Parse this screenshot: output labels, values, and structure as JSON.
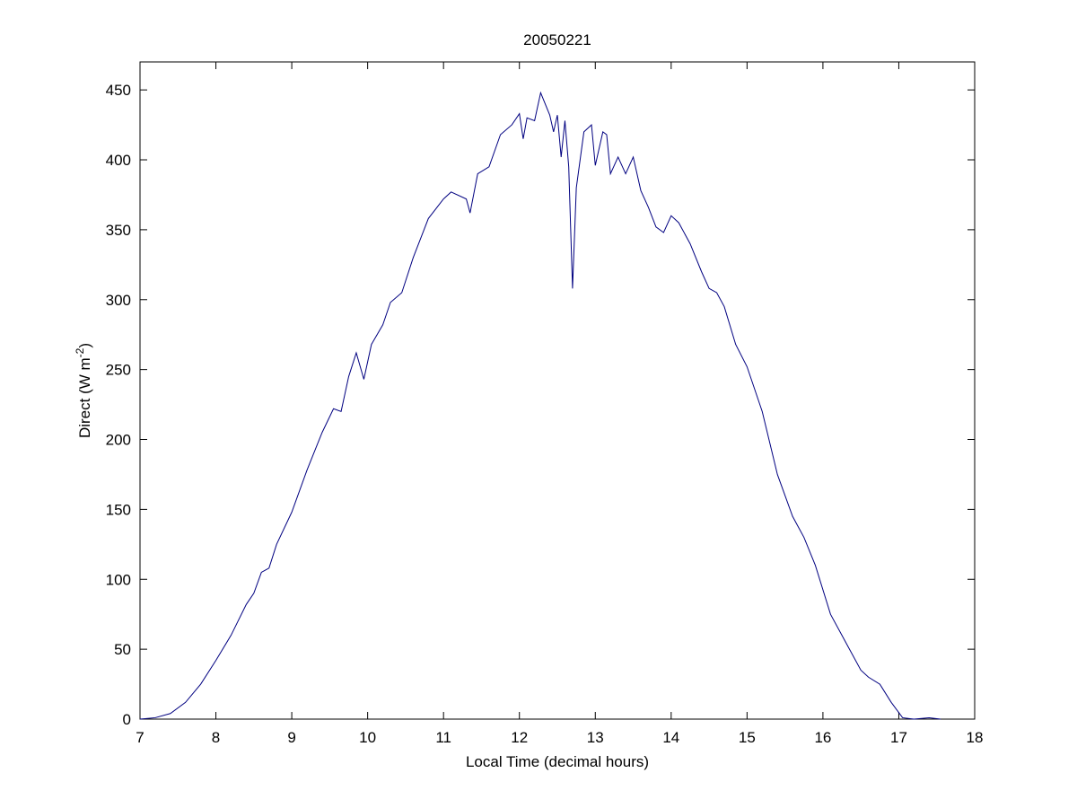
{
  "chart_data": {
    "type": "line",
    "title": "20050221",
    "xlabel": "Local Time (decimal hours)",
    "ylabel": "Direct (W m",
    "ylabel_sup": "-2",
    "ylabel_end": ")",
    "xlim": [
      7,
      18
    ],
    "xticks": [
      7,
      8,
      9,
      10,
      11,
      12,
      13,
      14,
      15,
      16,
      17,
      18
    ],
    "ylim": [
      0,
      470
    ],
    "yticks": [
      0,
      50,
      100,
      150,
      200,
      250,
      300,
      350,
      400,
      450
    ],
    "grid": false,
    "series": [
      {
        "name": "Direct",
        "color": "#000080",
        "x": [
          7.0,
          7.2,
          7.4,
          7.6,
          7.8,
          8.0,
          8.2,
          8.4,
          8.5,
          8.6,
          8.7,
          8.8,
          9.0,
          9.2,
          9.4,
          9.55,
          9.65,
          9.75,
          9.85,
          9.95,
          10.05,
          10.2,
          10.3,
          10.45,
          10.6,
          10.8,
          11.0,
          11.1,
          11.3,
          11.35,
          11.45,
          11.6,
          11.75,
          11.9,
          12.0,
          12.05,
          12.1,
          12.2,
          12.28,
          12.4,
          12.45,
          12.5,
          12.55,
          12.6,
          12.65,
          12.7,
          12.75,
          12.85,
          12.95,
          13.0,
          13.1,
          13.15,
          13.2,
          13.3,
          13.4,
          13.5,
          13.6,
          13.7,
          13.8,
          13.9,
          14.0,
          14.1,
          14.25,
          14.4,
          14.5,
          14.6,
          14.7,
          14.85,
          15.0,
          15.2,
          15.4,
          15.6,
          15.75,
          15.9,
          16.1,
          16.3,
          16.5,
          16.6,
          16.75,
          16.9,
          17.05,
          17.2,
          17.4,
          17.55
        ],
        "values": [
          0,
          1,
          4,
          12,
          25,
          42,
          60,
          82,
          90,
          105,
          108,
          125,
          148,
          178,
          205,
          222,
          220,
          245,
          262,
          243,
          268,
          282,
          298,
          305,
          330,
          358,
          372,
          377,
          372,
          362,
          390,
          395,
          418,
          425,
          433,
          415,
          430,
          428,
          448,
          432,
          420,
          432,
          402,
          428,
          395,
          308,
          380,
          420,
          425,
          396,
          420,
          418,
          390,
          402,
          390,
          402,
          378,
          366,
          352,
          348,
          360,
          355,
          340,
          320,
          308,
          305,
          295,
          268,
          252,
          220,
          175,
          145,
          130,
          110,
          75,
          55,
          35,
          30,
          25,
          12,
          1,
          0,
          1,
          0
        ]
      }
    ]
  }
}
